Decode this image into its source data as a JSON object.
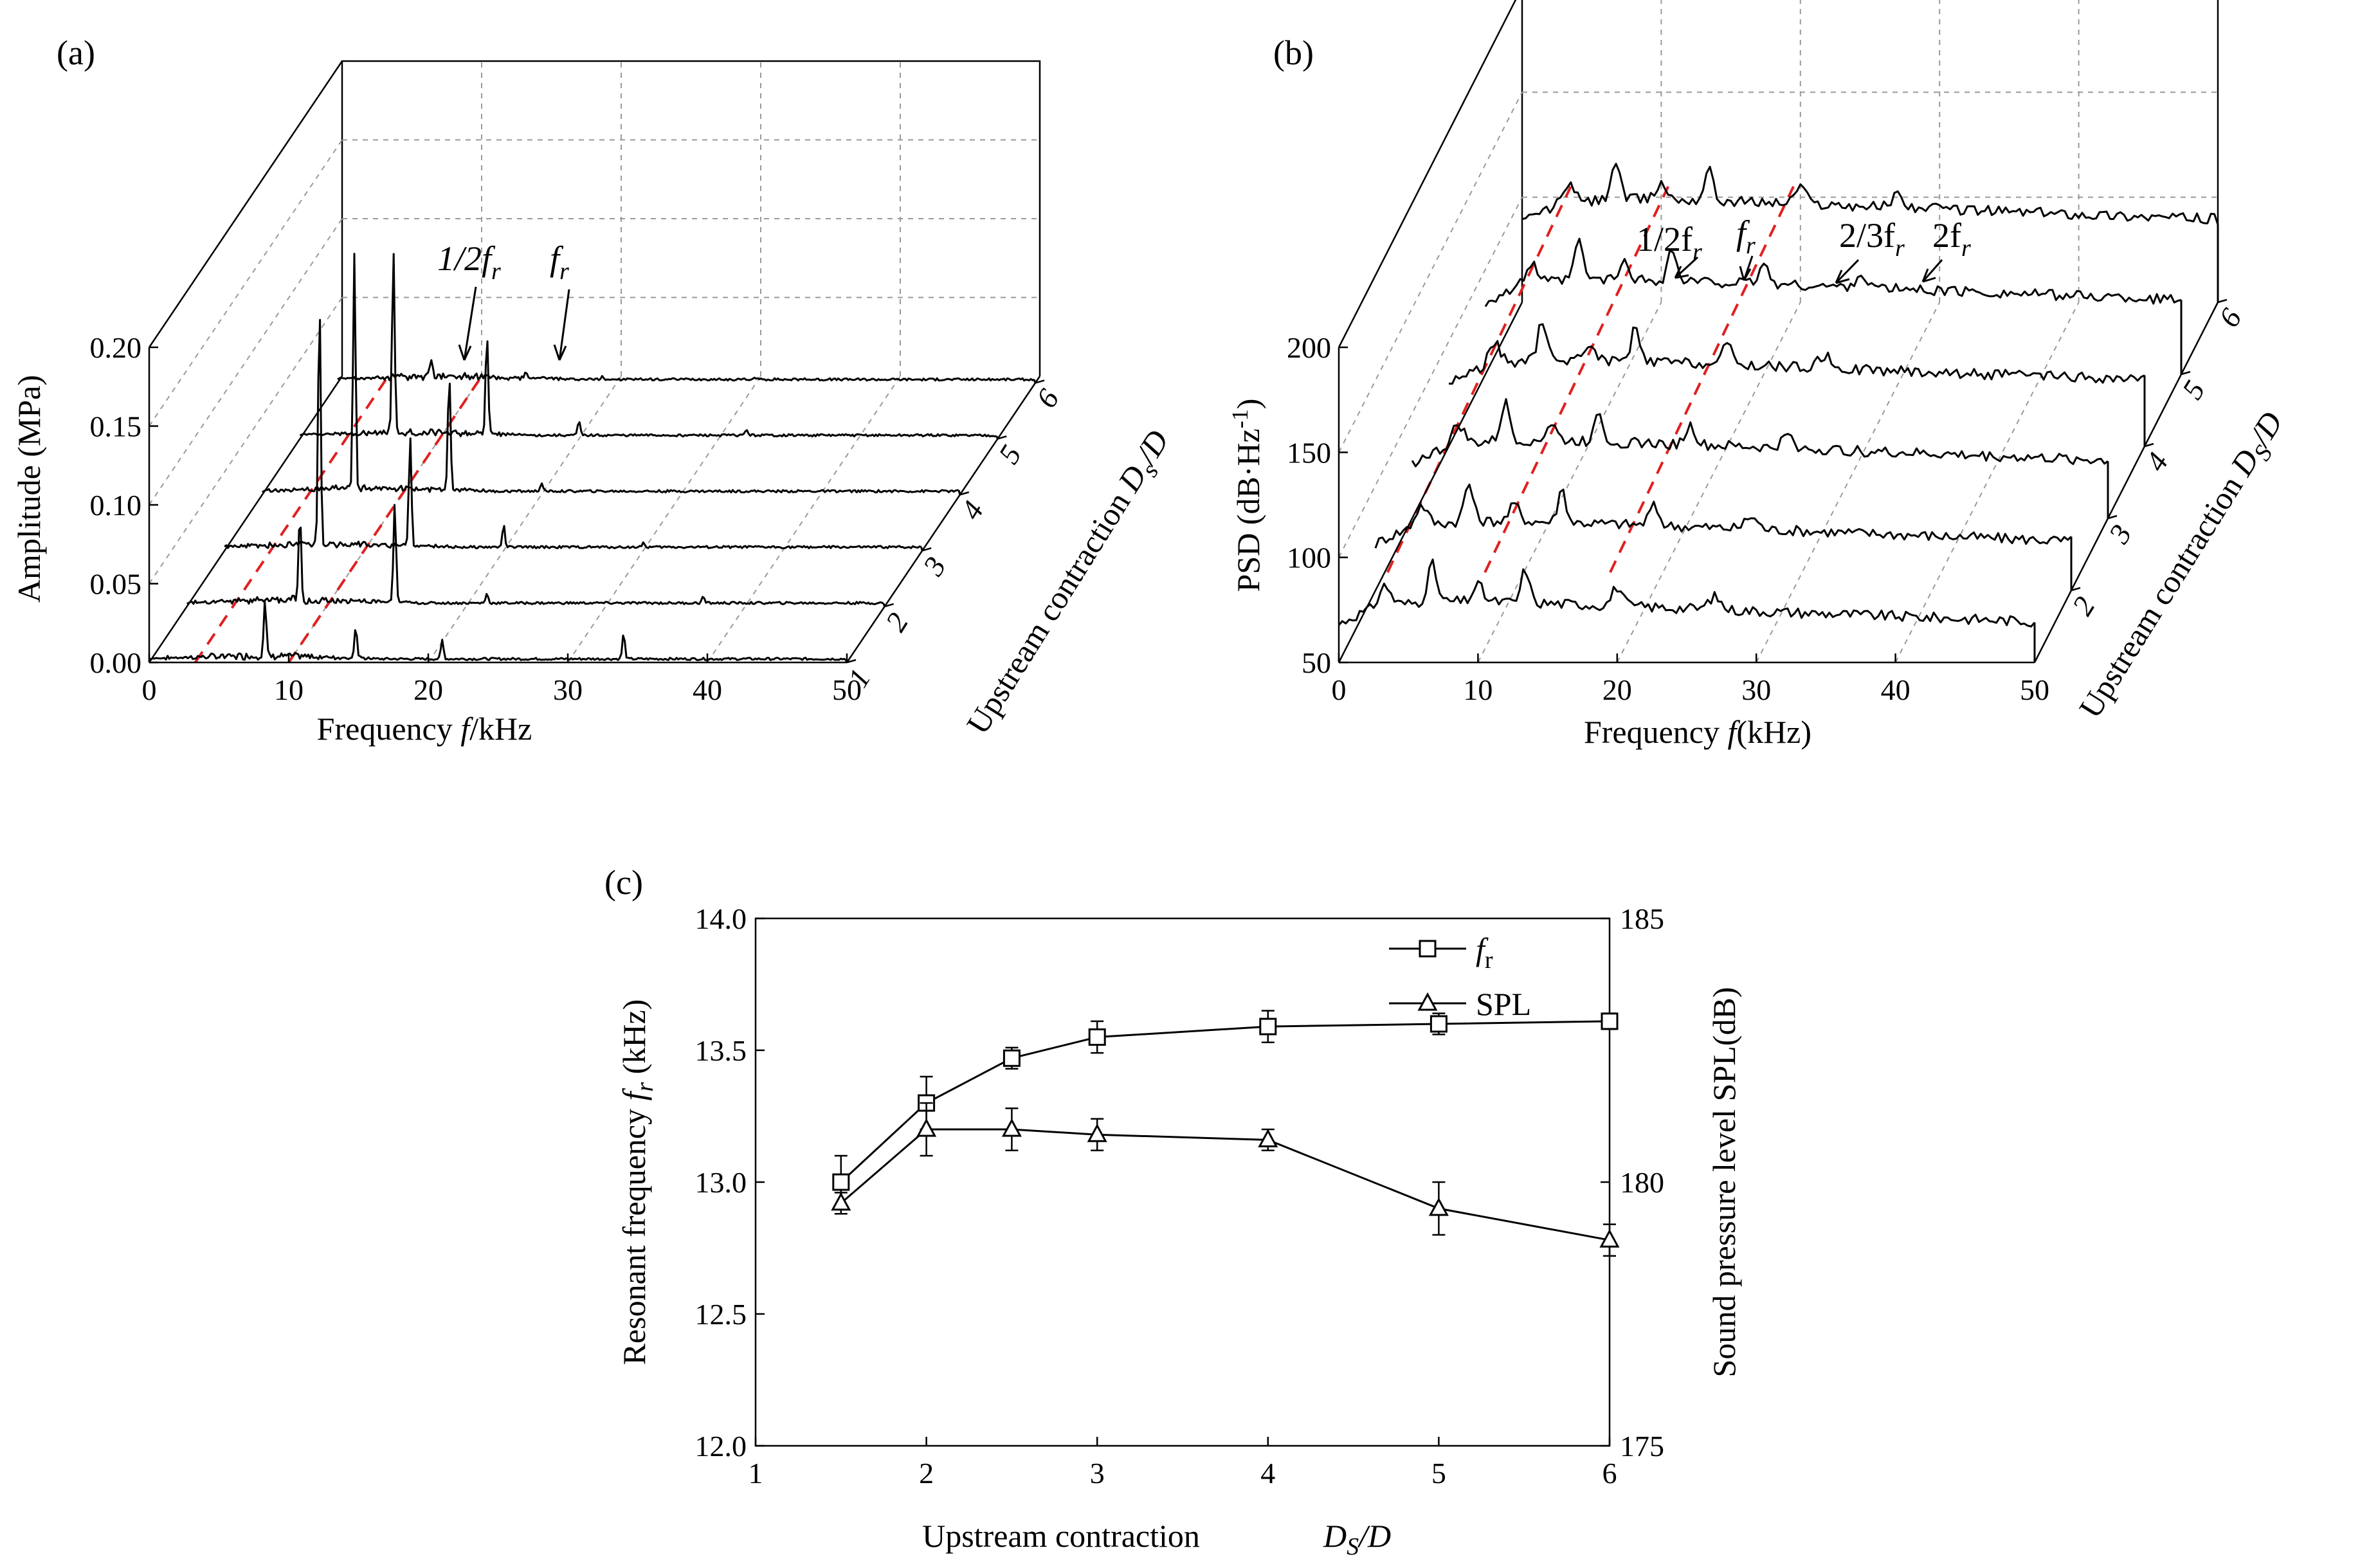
{
  "chart_data": [
    {
      "panel_label": "(a)",
      "type": "line",
      "style": "3d-waterfall",
      "xlabel_prefix": "Frequency ",
      "xlabel_var": "f",
      "xlabel_unit": "/kHz",
      "ylabel": "Amplitude (MPa)",
      "zlabel_prefix": "Upstream contraction ",
      "zlabel_var": "D",
      "zlabel_sub": "s",
      "zlabel_suffix": "/D",
      "xlim": [
        0,
        50
      ],
      "ylim": [
        0.0,
        0.2
      ],
      "xticks": [
        "0",
        "10",
        "20",
        "30",
        "40",
        "50"
      ],
      "yticks": [
        "0.00",
        "0.05",
        "0.10",
        "0.15",
        "0.20"
      ],
      "zticks": [
        "1",
        "2",
        "3",
        "4",
        "5",
        "6"
      ],
      "annotations": [
        {
          "text": "1/2f",
          "sub": "r"
        },
        {
          "text": "f",
          "sub": "r"
        }
      ],
      "series": [
        {
          "name": "1",
          "peaks": [
            [
              8.3,
              0.035
            ],
            [
              14.8,
              0.02
            ],
            [
              21.0,
              0.012
            ],
            [
              34.0,
              0.016
            ]
          ]
        },
        {
          "name": "2",
          "peaks": [
            [
              8.1,
              0.055
            ],
            [
              14.9,
              0.063
            ],
            [
              21.5,
              0.006
            ],
            [
              37.0,
              0.004
            ]
          ]
        },
        {
          "name": "3",
          "peaks": [
            [
              6.8,
              0.155
            ],
            [
              13.3,
              0.07
            ],
            [
              20.0,
              0.014
            ],
            [
              30.0,
              0.003
            ]
          ]
        },
        {
          "name": "4",
          "peaks": [
            [
              6.6,
              0.148
            ],
            [
              13.4,
              0.074
            ],
            [
              20.0,
              0.005
            ]
          ]
        },
        {
          "name": "5",
          "peaks": [
            [
              6.7,
              0.115
            ],
            [
              13.4,
              0.065
            ],
            [
              20.0,
              0.009
            ],
            [
              32.0,
              0.004
            ]
          ]
        },
        {
          "name": "6",
          "peaks": [
            [
              6.7,
              0.012
            ],
            [
              13.5,
              0.003
            ],
            [
              19.0,
              0.002
            ],
            [
              30.0,
              0.001
            ]
          ]
        }
      ]
    },
    {
      "panel_label": "(b)",
      "type": "line",
      "style": "3d-waterfall",
      "xlabel_prefix": "Frequency ",
      "xlabel_var": "f",
      "xlabel_unit": "(kHz)",
      "ylabel_main": "PSD (dB·Hz",
      "ylabel_sup": "-1",
      "ylabel_end": ")",
      "zlabel_prefix": "Upstream contraction ",
      "zlabel_var": "D",
      "zlabel_sub": "S",
      "zlabel_suffix": "/D",
      "xlim": [
        0,
        50
      ],
      "ylim": [
        50,
        200
      ],
      "xticks": [
        "0",
        "10",
        "20",
        "30",
        "40",
        "50"
      ],
      "yticks": [
        "50",
        "100",
        "150",
        "200"
      ],
      "zticks": [
        "2",
        "3",
        "4",
        "5",
        "6"
      ],
      "annotations": [
        {
          "text": "1/2f",
          "sub": "r"
        },
        {
          "text": "f",
          "sub": "r"
        },
        {
          "text": "2/3f",
          "sub": "r"
        },
        {
          "text": "2f",
          "sub": "r"
        }
      ],
      "series": [
        {
          "name": "1",
          "level": 80
        },
        {
          "name": "2",
          "level": 84
        },
        {
          "name": "3",
          "level": 88
        },
        {
          "name": "4",
          "level": 92
        },
        {
          "name": "5",
          "level": 96
        },
        {
          "name": "6",
          "level": 100
        }
      ]
    },
    {
      "panel_label": "(c)",
      "type": "line",
      "xlabel": "Upstream contraction",
      "xlabel_var": "D",
      "xlabel_sub": "S",
      "xlabel_suffix": "/D",
      "ylabel_left_prefix": "Resonant frequency ",
      "ylabel_left_var": "f",
      "ylabel_left_sub": "r",
      "ylabel_left_suffix": " (kHz)",
      "ylabel_right": "Sound pressure level SPL(dB)",
      "xlim": [
        1,
        6
      ],
      "ylim_left": [
        12.0,
        14.0
      ],
      "ylim_right": [
        175,
        185
      ],
      "xticks": [
        "1",
        "2",
        "3",
        "4",
        "5",
        "6"
      ],
      "yticks_left": [
        "12.0",
        "12.5",
        "13.0",
        "13.5",
        "14.0"
      ],
      "yticks_right": [
        "175",
        "180",
        "185"
      ],
      "legend_position": "top-right",
      "series": [
        {
          "name": "f",
          "name_sub": "r",
          "axis": "left",
          "marker": "square",
          "x": [
            1.5,
            2,
            2.5,
            3,
            4,
            5,
            6
          ],
          "y": [
            13.0,
            13.3,
            13.47,
            13.55,
            13.59,
            13.6,
            13.61
          ],
          "err": [
            0.1,
            0.1,
            0.04,
            0.06,
            0.06,
            0.04,
            0.03
          ]
        },
        {
          "name": "SPL",
          "axis": "right",
          "marker": "triangle",
          "x": [
            1.5,
            2,
            2.5,
            3,
            4,
            5,
            6
          ],
          "y": [
            179.6,
            181.0,
            181.0,
            180.9,
            180.8,
            179.5,
            178.9
          ],
          "err": [
            0.2,
            0.5,
            0.4,
            0.3,
            0.2,
            0.5,
            0.3
          ]
        }
      ]
    }
  ]
}
